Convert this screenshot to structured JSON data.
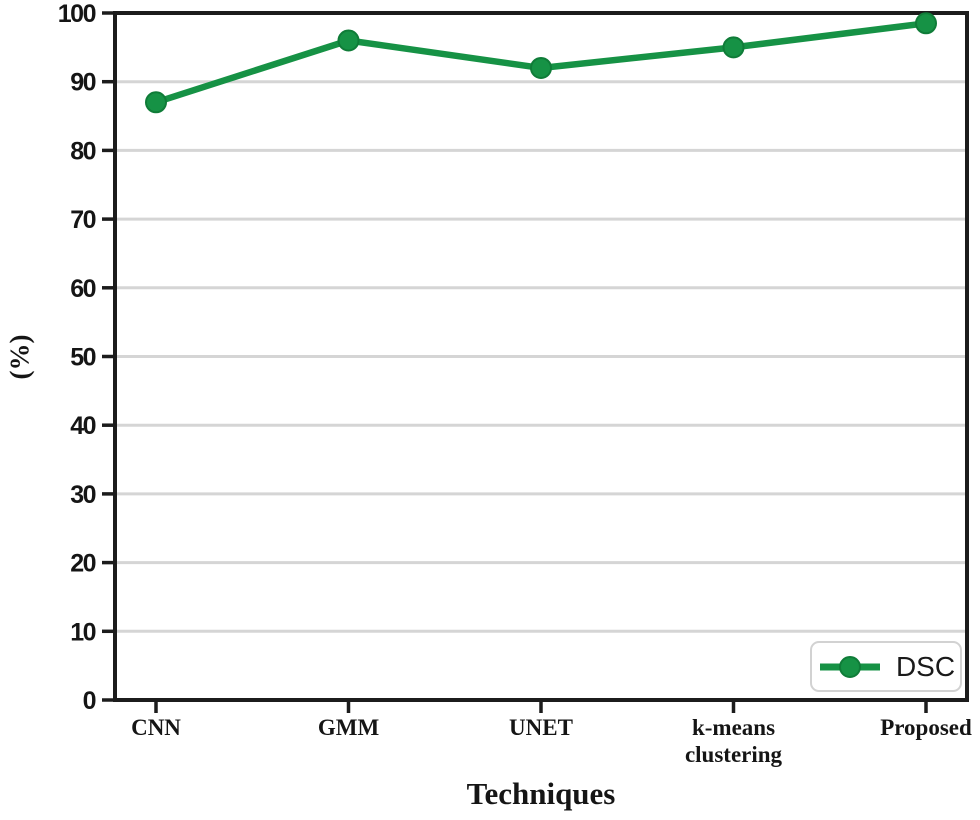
{
  "figure": {
    "xlabel": "Techniques",
    "ylabel": "(%)"
  },
  "chart_data": {
    "type": "line",
    "title": "",
    "xlabel": "Techniques",
    "ylabel": "(%)",
    "categories": [
      "CNN",
      "GMM",
      "UNET",
      "k-means\nclustering",
      "Proposed"
    ],
    "series": [
      {
        "name": "DSC",
        "values": [
          87,
          96,
          92,
          95,
          98.5
        ]
      }
    ],
    "ylim": [
      0,
      100
    ],
    "ytick_step": 10,
    "ytick_labels": [
      "0",
      "10",
      "20",
      "30",
      "40",
      "50",
      "60",
      "70",
      "80",
      "90",
      "100"
    ],
    "grid": "horizontal",
    "legend_position": "lower right",
    "colors": {
      "line": "#169245",
      "marker": "#169245",
      "marker_edge": "#0f7c38",
      "grid": "#d5d5d5",
      "axis": "#1c1c1c",
      "text": "#151515",
      "legend_border": "#d2d2d2"
    }
  }
}
